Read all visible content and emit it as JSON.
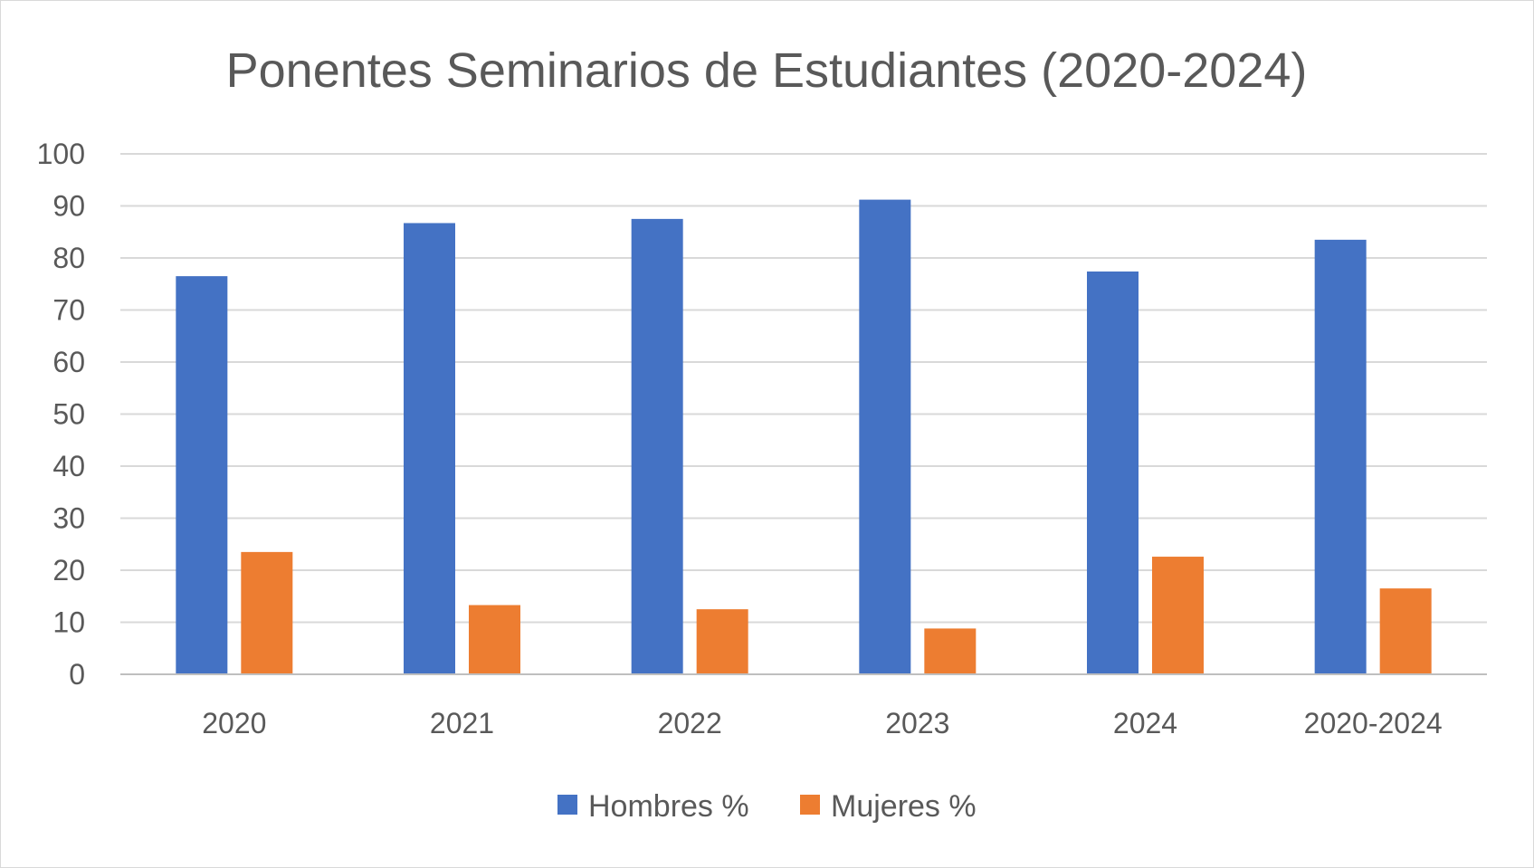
{
  "chart_data": {
    "type": "bar",
    "title": "Ponentes Seminarios de Estudiantes (2020-2024)",
    "categories": [
      "2020",
      "2021",
      "2022",
      "2023",
      "2024",
      "2020-2024"
    ],
    "series": [
      {
        "name": "Hombres %",
        "color": "#4472c4",
        "values": [
          76.5,
          86.7,
          87.5,
          91.2,
          77.4,
          83.5
        ]
      },
      {
        "name": "Mujeres %",
        "color": "#ed7d31",
        "values": [
          23.5,
          13.3,
          12.5,
          8.8,
          22.6,
          16.5
        ]
      }
    ],
    "ylim": [
      0,
      100
    ],
    "yticks": [
      0,
      10,
      20,
      30,
      40,
      50,
      60,
      70,
      80,
      90,
      100
    ],
    "grid": true,
    "legend_position": "bottom"
  }
}
